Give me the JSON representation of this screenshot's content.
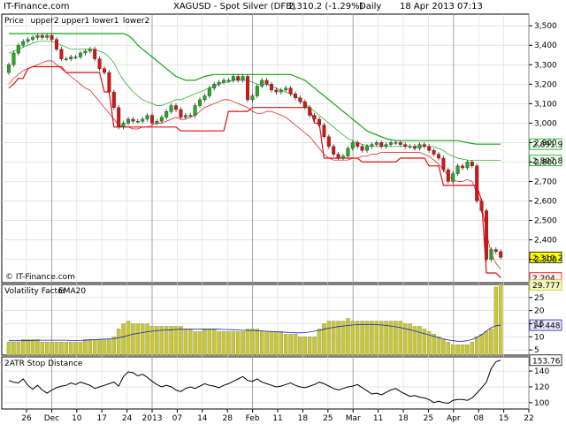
{
  "header": {
    "site": "IT-Finance.com",
    "symbol": "XAGUSD - Spot Silver (DFB)",
    "last": "2,310.2 (-1.29%)",
    "period": "Daily",
    "timestamp": "18 Apr 2013 07:13"
  },
  "watermark": "© IT-Finance.com",
  "colors": {
    "up_candle": "#22aa22",
    "down_candle": "#dd1111",
    "upper_band": "#11aa11",
    "lower_band": "#dd1111",
    "vf_bar": "#c8c832",
    "ema_line": "#2222aa",
    "atr_line": "#000000",
    "grid": "#dcdcdc"
  },
  "chart_data": [
    {
      "type": "candlestick",
      "title": "Price",
      "legend": [
        "Price",
        "upper2",
        "upper1",
        "lower1",
        "lower2"
      ],
      "ylim": [
        2180,
        3560
      ],
      "yticks": [
        "3,500",
        "3,400",
        "3,300",
        "3,200",
        "3,100",
        "3,000",
        "2,900",
        "2,800",
        "2,700",
        "2,600",
        "2,500",
        "2,400",
        "2,300"
      ],
      "ytick_values": [
        3500,
        3400,
        3300,
        3200,
        3100,
        3000,
        2900,
        2800,
        2700,
        2600,
        2500,
        2400,
        2300
      ],
      "last_labels": [
        {
          "text": "2,891.9",
          "value": 2891.9,
          "series": "upper2"
        },
        {
          "text": "2,807.8",
          "value": 2807.8,
          "series": "upper1"
        },
        {
          "text": "2,310.2",
          "value": 2310.2,
          "series": "price"
        },
        {
          "text": "2,204",
          "value": 2204,
          "series": "lower"
        }
      ],
      "close": [
        3300,
        3360,
        3400,
        3420,
        3430,
        3440,
        3450,
        3440,
        3450,
        3430,
        3380,
        3330,
        3330,
        3340,
        3340,
        3360,
        3370,
        3380,
        3330,
        3280,
        3260,
        3160,
        3080,
        2980,
        3000,
        3020,
        3010,
        3010,
        3020,
        3040,
        3000,
        3010,
        3030,
        3060,
        3090,
        3070,
        3030,
        3040,
        3040,
        3090,
        3120,
        3140,
        3180,
        3200,
        3210,
        3220,
        3220,
        3240,
        3220,
        3240,
        3120,
        3140,
        3190,
        3220,
        3200,
        3170,
        3160,
        3170,
        3180,
        3150,
        3130,
        3110,
        3080,
        3040,
        3020,
        2990,
        2930,
        2880,
        2840,
        2820,
        2830,
        2870,
        2900,
        2880,
        2860,
        2880,
        2890,
        2900,
        2880,
        2890,
        2900,
        2900,
        2890,
        2880,
        2880,
        2870,
        2890,
        2880,
        2860,
        2840,
        2820,
        2760,
        2700,
        2740,
        2780,
        2770,
        2800,
        2780,
        2600,
        2550,
        2300,
        2350,
        2340,
        2310
      ],
      "upper2": [
        3460,
        3460,
        3460,
        3460,
        3460,
        3460,
        3460,
        3460,
        3460,
        3460,
        3460,
        3460,
        3460,
        3460,
        3460,
        3460,
        3460,
        3460,
        3460,
        3460,
        3460,
        3460,
        3460,
        3460,
        3460,
        3450,
        3430,
        3400,
        3380,
        3360,
        3340,
        3320,
        3300,
        3280,
        3260,
        3240,
        3230,
        3220,
        3220,
        3220,
        3230,
        3240,
        3245,
        3250,
        3250,
        3250,
        3250,
        3250,
        3250,
        3250,
        3250,
        3250,
        3250,
        3250,
        3250,
        3250,
        3250,
        3250,
        3250,
        3250,
        3240,
        3230,
        3220,
        3200,
        3180,
        3160,
        3140,
        3120,
        3100,
        3080,
        3060,
        3040,
        3020,
        3000,
        2980,
        2960,
        2950,
        2940,
        2930,
        2920,
        2915,
        2910,
        2910,
        2910,
        2910,
        2910,
        2910,
        2910,
        2910,
        2910,
        2910,
        2910,
        2910,
        2910,
        2910,
        2905,
        2900,
        2895,
        2892,
        2892,
        2892,
        2892,
        2892,
        2892
      ],
      "upper1": [
        3360,
        3370,
        3380,
        3390,
        3400,
        3410,
        3420,
        3420,
        3420,
        3420,
        3410,
        3400,
        3390,
        3380,
        3380,
        3380,
        3380,
        3380,
        3380,
        3370,
        3360,
        3340,
        3310,
        3260,
        3220,
        3190,
        3160,
        3140,
        3120,
        3110,
        3100,
        3090,
        3090,
        3100,
        3110,
        3120,
        3120,
        3130,
        3140,
        3150,
        3160,
        3170,
        3180,
        3190,
        3200,
        3210,
        3210,
        3220,
        3220,
        3220,
        3220,
        3210,
        3200,
        3200,
        3200,
        3190,
        3180,
        3170,
        3160,
        3150,
        3140,
        3120,
        3100,
        3080,
        3060,
        3040,
        3020,
        3000,
        2980,
        2960,
        2940,
        2920,
        2910,
        2900,
        2890,
        2885,
        2880,
        2880,
        2880,
        2880,
        2880,
        2880,
        2880,
        2880,
        2880,
        2880,
        2880,
        2880,
        2880,
        2880,
        2870,
        2860,
        2840,
        2830,
        2820,
        2815,
        2810,
        2808,
        2808,
        2808,
        2808,
        2808,
        2808,
        2808
      ],
      "lower1": [
        3200,
        3230,
        3250,
        3270,
        3280,
        3290,
        3300,
        3310,
        3320,
        3320,
        3300,
        3280,
        3260,
        3240,
        3220,
        3200,
        3180,
        3170,
        3140,
        3110,
        3080,
        3050,
        3020,
        2990,
        2980,
        2980,
        2970,
        2970,
        2980,
        2980,
        2990,
        3000,
        3000,
        3010,
        3020,
        3030,
        3020,
        3020,
        3030,
        3040,
        3060,
        3080,
        3090,
        3100,
        3110,
        3120,
        3120,
        3110,
        3100,
        3090,
        3080,
        3060,
        3050,
        3050,
        3060,
        3060,
        3050,
        3040,
        3030,
        3010,
        2990,
        2970,
        2950,
        2930,
        2900,
        2870,
        2840,
        2820,
        2810,
        2810,
        2810,
        2810,
        2820,
        2820,
        2830,
        2830,
        2840,
        2840,
        2850,
        2850,
        2850,
        2850,
        2850,
        2850,
        2850,
        2850,
        2850,
        2840,
        2830,
        2810,
        2790,
        2760,
        2730,
        2710,
        2700,
        2700,
        2710,
        2700,
        2640,
        2580,
        2440,
        2330,
        2280,
        2250
      ],
      "lower2": [
        3180,
        3200,
        3230,
        3230,
        3280,
        3290,
        3290,
        3290,
        3290,
        3290,
        3290,
        3290,
        3260,
        3260,
        3260,
        3260,
        3260,
        3260,
        3260,
        3260,
        3160,
        3160,
        2980,
        2980,
        2980,
        2980,
        2980,
        2980,
        2980,
        2980,
        2980,
        2980,
        2980,
        2980,
        2980,
        2980,
        2960,
        2960,
        2960,
        2960,
        2960,
        2960,
        2960,
        2960,
        2960,
        2960,
        3060,
        3060,
        3060,
        3060,
        3060,
        3080,
        3080,
        3080,
        3080,
        3080,
        3080,
        3080,
        3080,
        3080,
        3080,
        3080,
        3080,
        3080,
        3000,
        3000,
        2820,
        2820,
        2820,
        2820,
        2820,
        2820,
        2820,
        2820,
        2800,
        2800,
        2800,
        2800,
        2800,
        2800,
        2800,
        2800,
        2820,
        2820,
        2820,
        2820,
        2820,
        2820,
        2780,
        2780,
        2780,
        2680,
        2680,
        2680,
        2680,
        2680,
        2680,
        2680,
        2680,
        2600,
        2230,
        2230,
        2230,
        2204
      ]
    },
    {
      "type": "bar",
      "title": "Volatility Factor",
      "legend": [
        "Volatility Factor",
        "EMA20"
      ],
      "ylim": [
        3,
        30
      ],
      "yticks": [
        "25",
        "20",
        "15",
        "10",
        "5"
      ],
      "ytick_values": [
        25,
        20,
        15,
        10,
        5
      ],
      "last_labels": [
        {
          "text": "29.777",
          "value": 29.777,
          "series": "vf"
        },
        {
          "text": "14.448",
          "value": 14.448,
          "series": "ema"
        }
      ],
      "values": [
        8,
        8,
        8,
        9,
        9,
        9,
        9,
        8,
        8,
        8,
        8,
        8,
        8,
        8,
        8,
        8,
        9,
        9,
        9,
        9,
        9,
        9,
        10,
        13,
        15,
        16,
        15,
        15,
        15,
        15,
        14,
        14,
        14,
        14,
        14,
        14,
        14,
        13,
        13,
        12,
        12,
        13,
        13,
        13,
        12,
        12,
        12,
        12,
        12,
        12,
        13,
        13,
        13,
        12,
        12,
        12,
        12,
        12,
        11,
        11,
        11,
        10,
        10,
        10,
        10,
        13,
        15,
        16,
        16,
        16,
        16,
        17,
        16,
        16,
        16,
        16,
        16,
        16,
        16,
        16,
        16,
        16,
        16,
        15,
        15,
        14,
        14,
        13,
        12,
        11,
        10,
        9,
        8,
        7,
        7,
        7,
        7,
        8,
        10,
        11,
        12,
        13,
        29,
        30
      ],
      "ema": [
        8.5,
        8.5,
        8.5,
        8.5,
        8.6,
        8.6,
        8.7,
        8.7,
        8.7,
        8.7,
        8.7,
        8.7,
        8.7,
        8.6,
        8.6,
        8.6,
        8.7,
        8.8,
        8.9,
        9,
        9.1,
        9.2,
        9.3,
        9.6,
        10,
        10.5,
        11,
        11.3,
        11.6,
        11.9,
        12.1,
        12.3,
        12.5,
        12.6,
        12.7,
        12.8,
        12.9,
        12.9,
        12.9,
        12.9,
        12.9,
        12.9,
        12.9,
        12.9,
        12.9,
        12.8,
        12.8,
        12.7,
        12.6,
        12.5,
        12.4,
        12.4,
        12.3,
        12.2,
        12.1,
        12,
        11.9,
        11.8,
        11.7,
        11.6,
        11.5,
        11.5,
        11.6,
        11.8,
        12.1,
        12.5,
        12.9,
        13.3,
        13.6,
        13.9,
        14.1,
        14.3,
        14.5,
        14.6,
        14.7,
        14.7,
        14.7,
        14.6,
        14.5,
        14.3,
        14.1,
        13.8,
        13.5,
        13.1,
        12.7,
        12.2,
        11.7,
        11.2,
        10.7,
        10.2,
        9.7,
        9.2,
        8.8,
        8.5,
        8.3,
        8.3,
        8.5,
        9,
        9.8,
        10.8,
        12.2,
        13.5,
        14.2,
        14.448
      ]
    },
    {
      "type": "line",
      "title": "2ATR Stop Distance",
      "legend": [
        "2ATR Stop Distance"
      ],
      "ylim": [
        92,
        158
      ],
      "yticks": [
        "140",
        "120",
        "100"
      ],
      "ytick_values": [
        140,
        120,
        100
      ],
      "last_labels": [
        {
          "text": "153.76",
          "value": 153.76,
          "series": "atr"
        }
      ],
      "values": [
        128,
        126,
        125,
        130,
        122,
        117,
        122,
        116,
        112,
        116,
        119,
        121,
        122,
        125,
        123,
        126,
        124,
        122,
        118,
        120,
        122,
        124,
        126,
        121,
        133,
        139,
        138,
        134,
        136,
        132,
        127,
        123,
        120,
        122,
        120,
        116,
        114,
        118,
        120,
        118,
        121,
        124,
        122,
        121,
        119,
        122,
        124,
        127,
        130,
        133,
        128,
        127,
        130,
        126,
        124,
        122,
        120,
        121,
        123,
        125,
        122,
        120,
        119,
        121,
        123,
        126,
        124,
        121,
        118,
        116,
        118,
        120,
        121,
        123,
        119,
        115,
        111,
        112,
        110,
        113,
        116,
        118,
        114,
        111,
        108,
        109,
        107,
        106,
        104,
        100,
        102,
        100,
        99,
        103,
        104,
        104,
        103,
        106,
        112,
        119,
        126,
        143,
        152,
        153.76
      ],
      "xticks": [
        "26",
        "Dec",
        "10",
        "17",
        "24",
        "2013",
        "07",
        "14",
        "28",
        "Feb",
        "11",
        "18",
        "25",
        "Mar",
        "11",
        "18",
        "25",
        "Apr",
        "08",
        "15",
        "22"
      ]
    }
  ]
}
